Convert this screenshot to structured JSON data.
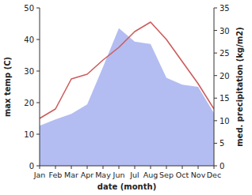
{
  "chart_data": {
    "type": "line",
    "x_label": "date (month)",
    "y_label": "max temp (C)",
    "y2_label": "med. precipitation (kg/m2)",
    "categories": [
      "Jan",
      "Feb",
      "Mar",
      "Apr",
      "May",
      "Jun",
      "Jul",
      "Aug",
      "Sep",
      "Oct",
      "Nov",
      "Dec"
    ],
    "ylim": [
      0,
      50
    ],
    "yticks": [
      0,
      10,
      20,
      30,
      40,
      50
    ],
    "y2lim": [
      0,
      35
    ],
    "y2ticks": [
      0,
      5,
      10,
      15,
      20,
      25,
      30,
      35
    ],
    "series": [
      {
        "name": "max temp",
        "type": "line",
        "color": "#cd5c5c",
        "values": [
          15,
          18,
          27.5,
          29,
          33.5,
          37.5,
          42.5,
          45.5,
          40,
          33,
          26,
          18
        ]
      },
      {
        "name": "med. precipitation",
        "type": "area",
        "axis": "y2",
        "color": "#b3bdf1",
        "values": [
          8.9,
          10.3,
          11.5,
          13.6,
          21.9,
          30.5,
          27.5,
          27,
          19.5,
          18,
          17.5,
          11.7
        ]
      }
    ]
  }
}
